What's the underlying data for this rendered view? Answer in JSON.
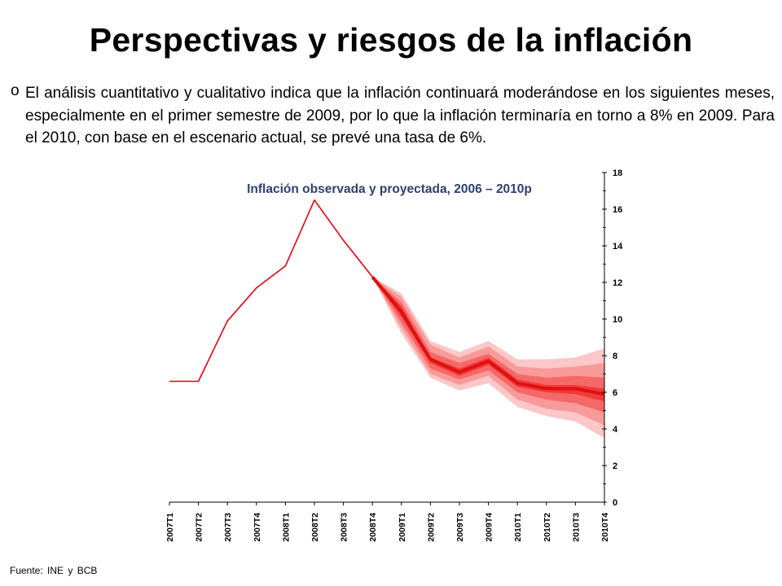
{
  "title": "Perspectivas y riesgos de la inflación",
  "bullet": {
    "marker": "o",
    "text": "El análisis cuantitativo y cualitativo indica que la inflación continuará moderándose en los siguientes meses, especialmente en el primer semestre de 2009, por lo que la inflación terminaría en torno a 8% en 2009. Para el 2010, con base en el escenario actual, se prevé una tasa de 6%."
  },
  "source": "Fuente: INE y BCB",
  "chart_data": {
    "type": "line",
    "title": "Inflación observada y proyectada, 2006 – 2010p",
    "categories": [
      "2007T1",
      "2007T2",
      "2007T3",
      "2007T4",
      "2008T1",
      "2008T2",
      "2008T3",
      "2008T4",
      "2009T1",
      "2009T2",
      "2009T3",
      "2009T4",
      "2010T1",
      "2010T2",
      "2010T3",
      "2010T4"
    ],
    "series": [
      {
        "values": [
          6.6,
          6.6,
          9.9,
          11.7,
          12.9,
          16.5,
          14.3,
          12.3,
          10.4,
          7.8,
          7.1,
          7.7,
          6.5,
          6.2,
          6.2,
          5.9
        ]
      }
    ],
    "fan_bands": {
      "start_index": 7,
      "band_upper": [
        [
          12.3,
          10.7,
          7.9,
          7.3,
          7.9,
          6.7,
          6.4,
          6.4,
          6.2
        ],
        [
          12.3,
          10.9,
          8.2,
          7.6,
          8.1,
          7.0,
          6.8,
          6.9,
          6.8
        ],
        [
          12.3,
          11.2,
          8.6,
          7.9,
          8.5,
          7.4,
          7.3,
          7.4,
          7.6
        ],
        [
          12.3,
          11.4,
          8.8,
          8.2,
          8.8,
          7.8,
          7.8,
          7.9,
          8.4
        ]
      ],
      "band_lower": [
        [
          12.3,
          10.1,
          7.6,
          6.9,
          7.5,
          6.3,
          6.0,
          5.9,
          5.5
        ],
        [
          12.3,
          9.8,
          7.3,
          6.7,
          7.2,
          6.0,
          5.6,
          5.4,
          4.9
        ],
        [
          12.3,
          9.5,
          7.0,
          6.4,
          6.9,
          5.6,
          5.1,
          4.9,
          4.2
        ],
        [
          12.3,
          9.2,
          6.8,
          6.1,
          6.5,
          5.2,
          4.7,
          4.4,
          3.5
        ]
      ]
    },
    "y_axis": {
      "position": "right",
      "min": 0,
      "max": 18,
      "ticks": [
        0,
        2,
        4,
        6,
        8,
        10,
        12,
        14,
        16,
        18
      ]
    },
    "colors": {
      "line": "#e8000b",
      "projection": "#e01010",
      "bands": [
        "#f23a3a",
        "#f56868",
        "#f89a9a",
        "#fbc7c7"
      ]
    },
    "grid": false,
    "legend": "none"
  }
}
